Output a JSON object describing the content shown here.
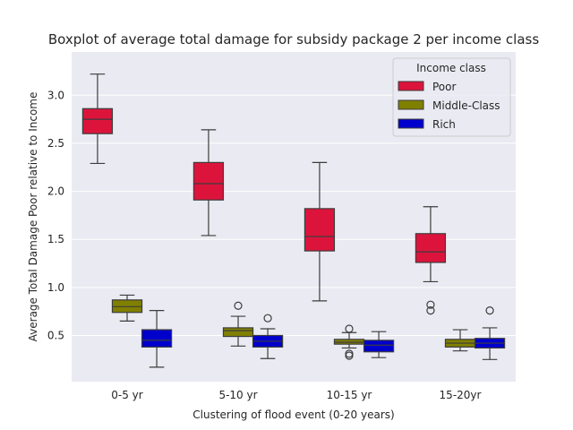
{
  "chart_data": {
    "type": "boxplot",
    "title": "Boxplot of average total damage for subsidy package 2 per income class",
    "xlabel": "Clustering of flood event (0-20 years)",
    "ylabel": "Average Total Damage Poor relative to Income",
    "categories": [
      "0-5 yr",
      "5-10 yr",
      "10-15 yr",
      "15-20yr"
    ],
    "ylim": [
      0.02,
      3.45
    ],
    "yticks": [
      0.5,
      1.0,
      1.5,
      2.0,
      2.5,
      3.0
    ],
    "ytick_labels": [
      "0.5",
      "1.0",
      "1.5",
      "2.0",
      "2.5",
      "3.0"
    ],
    "grid": true,
    "legend": {
      "title": "Income class",
      "position": "top-right"
    },
    "series": [
      {
        "name": "Poor",
        "color": "#dc143c",
        "boxes": [
          {
            "whislo": 2.29,
            "q1": 2.6,
            "med": 2.75,
            "q3": 2.86,
            "whishi": 3.22,
            "fliers": []
          },
          {
            "whislo": 1.54,
            "q1": 1.91,
            "med": 2.08,
            "q3": 2.3,
            "whishi": 2.64,
            "fliers": []
          },
          {
            "whislo": 0.86,
            "q1": 1.38,
            "med": 1.53,
            "q3": 1.82,
            "whishi": 2.3,
            "fliers": []
          },
          {
            "whislo": 1.06,
            "q1": 1.26,
            "med": 1.37,
            "q3": 1.56,
            "whishi": 1.84,
            "fliers": [
              0.82,
              0.76
            ]
          }
        ]
      },
      {
        "name": "Middle-Class",
        "color": "#808000",
        "boxes": [
          {
            "whislo": 0.65,
            "q1": 0.74,
            "med": 0.8,
            "q3": 0.87,
            "whishi": 0.92,
            "fliers": []
          },
          {
            "whislo": 0.39,
            "q1": 0.49,
            "med": 0.55,
            "q3": 0.58,
            "whishi": 0.7,
            "fliers": [
              0.81
            ]
          },
          {
            "whislo": 0.37,
            "q1": 0.41,
            "med": 0.43,
            "q3": 0.46,
            "whishi": 0.53,
            "fliers": [
              0.57,
              0.31,
              0.29
            ]
          },
          {
            "whislo": 0.34,
            "q1": 0.38,
            "med": 0.42,
            "q3": 0.46,
            "whishi": 0.56,
            "fliers": []
          }
        ]
      },
      {
        "name": "Rich",
        "color": "#0000cd",
        "boxes": [
          {
            "whislo": 0.17,
            "q1": 0.38,
            "med": 0.45,
            "q3": 0.56,
            "whishi": 0.76,
            "fliers": []
          },
          {
            "whislo": 0.26,
            "q1": 0.38,
            "med": 0.44,
            "q3": 0.5,
            "whishi": 0.57,
            "fliers": [
              0.68
            ]
          },
          {
            "whislo": 0.27,
            "q1": 0.33,
            "med": 0.4,
            "q3": 0.45,
            "whishi": 0.54,
            "fliers": []
          },
          {
            "whislo": 0.25,
            "q1": 0.37,
            "med": 0.42,
            "q3": 0.47,
            "whishi": 0.58,
            "fliers": [
              0.76
            ]
          }
        ]
      }
    ]
  }
}
